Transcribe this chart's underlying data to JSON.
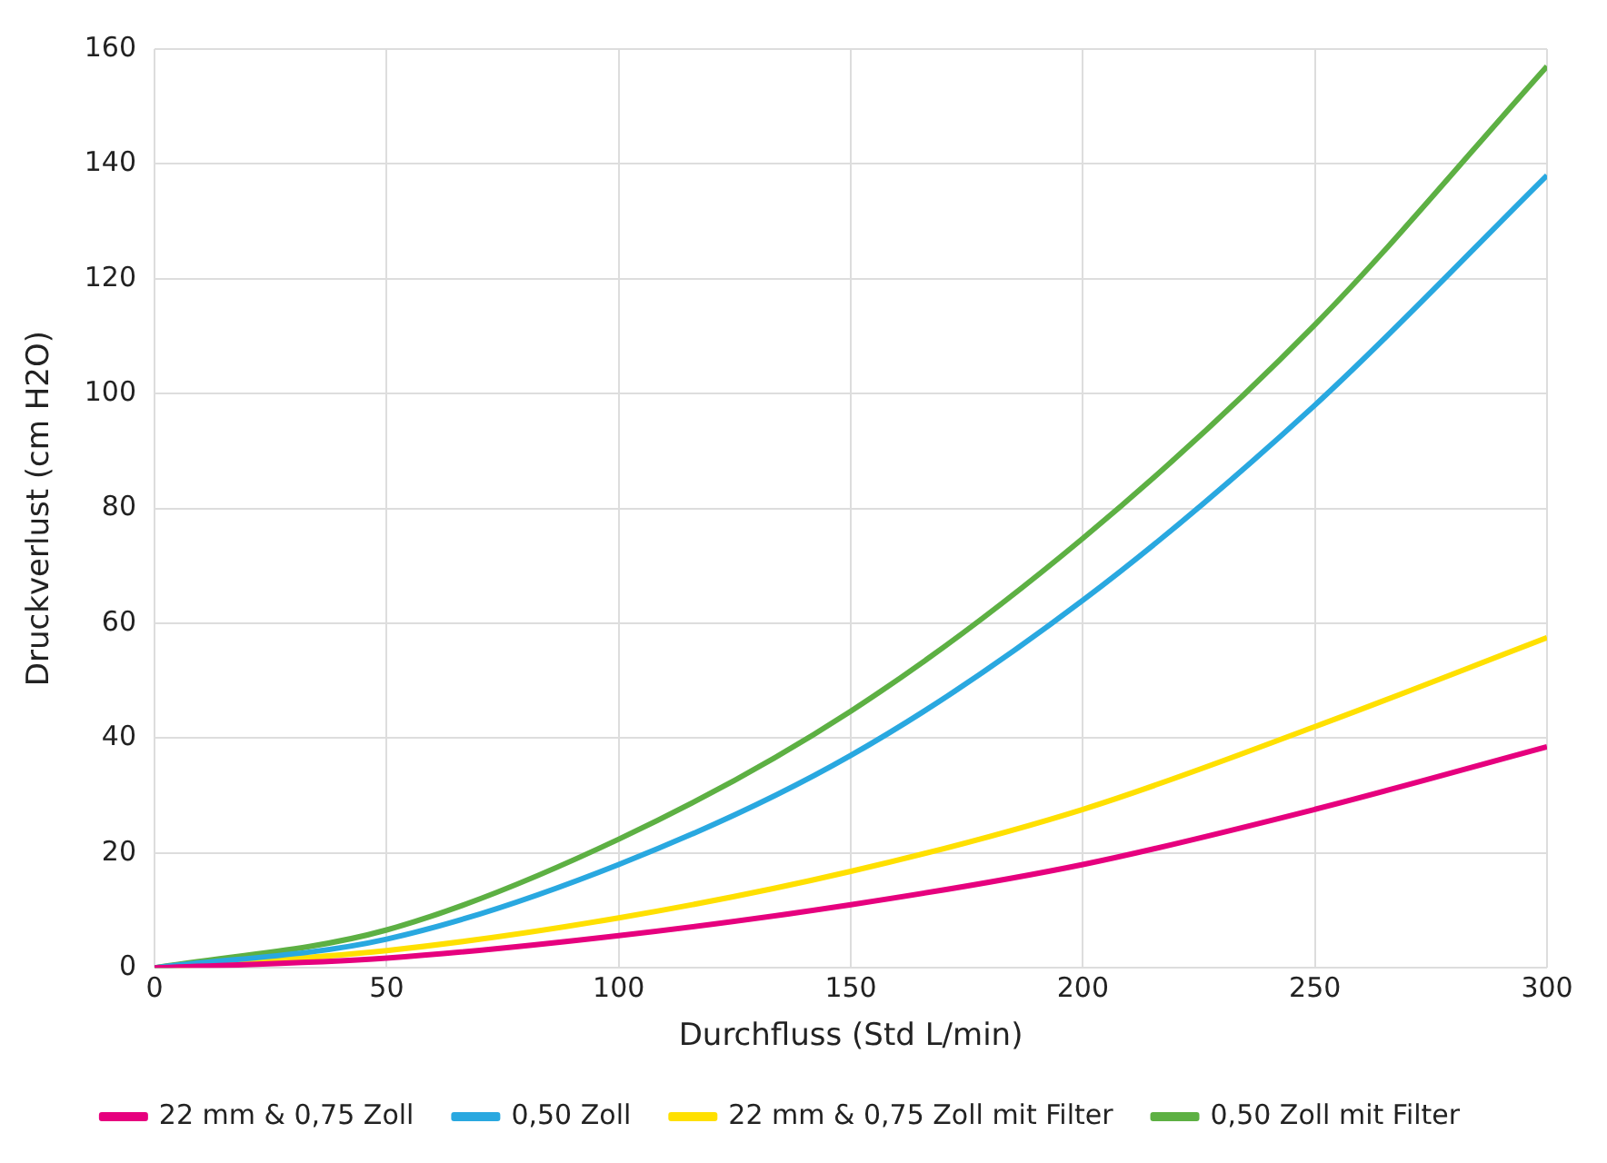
{
  "chart_data": {
    "type": "line",
    "xlabel": "Durchfluss (Std L/min)",
    "ylabel": "Druckverlust (cm H2O)",
    "x": [
      0,
      50,
      100,
      150,
      200,
      250,
      300
    ],
    "series": [
      {
        "name": "22 mm & 0,75 Zoll",
        "color": "#e6007e",
        "values": [
          0,
          1.7,
          5.6,
          11,
          18,
          27.6,
          38.5
        ]
      },
      {
        "name": "0,50 Zoll",
        "color": "#29a8e0",
        "values": [
          0,
          5,
          18,
          37,
          64,
          98,
          138
        ]
      },
      {
        "name": "22 mm & 0,75 Zoll mit Filter",
        "color": "#ffe000",
        "values": [
          0,
          3,
          8.7,
          16.8,
          27.6,
          42,
          57.5
        ]
      },
      {
        "name": "0,50 Zoll mit Filter",
        "color": "#5db043",
        "values": [
          0,
          6.6,
          22.4,
          44.7,
          74.8,
          112,
          157
        ]
      }
    ],
    "xlim": [
      0,
      300
    ],
    "xticks": [
      0,
      50,
      100,
      150,
      200,
      250,
      300
    ],
    "ylim": [
      0,
      160
    ],
    "yticks": [
      0,
      20,
      40,
      60,
      80,
      100,
      120,
      140,
      160
    ],
    "grid": true,
    "legend": "bottom",
    "marker": "none",
    "line_style": "solid"
  }
}
